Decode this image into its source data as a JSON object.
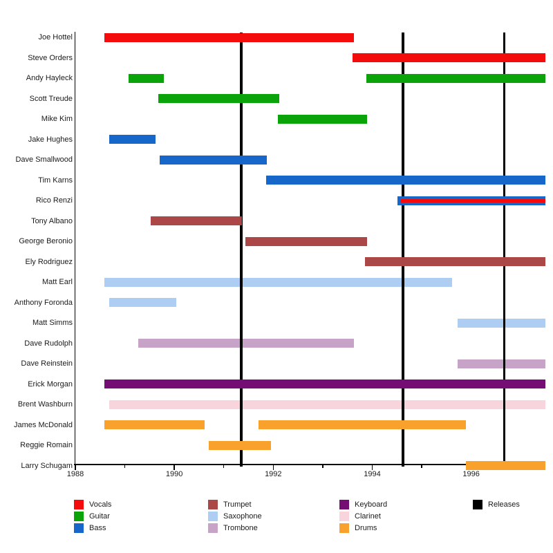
{
  "chart_data": {
    "type": "timeline",
    "title": "",
    "description": "Band membership timeline (gantt-style) with instrument color coding and release marker lines",
    "x_axis": {
      "min": 1988,
      "max": 1997.5,
      "labeled_ticks": [
        1988,
        1990,
        1992,
        1994,
        1996
      ],
      "minor_ticks": [
        1989,
        1991,
        1993,
        1995,
        1997
      ]
    },
    "releases": [
      1991.35,
      1994.62,
      1996.67
    ],
    "members": [
      {
        "name": "Joe Hottel",
        "bars": [
          {
            "instrument": "vocals",
            "start": 1988.58,
            "end": 1993.63
          }
        ]
      },
      {
        "name": "Steve Orders",
        "bars": [
          {
            "instrument": "vocals",
            "start": 1993.6,
            "end": 1997.5
          }
        ]
      },
      {
        "name": "Andy Hayleck",
        "bars": [
          {
            "instrument": "guitar",
            "start": 1989.08,
            "end": 1989.79
          },
          {
            "instrument": "guitar",
            "start": 1993.88,
            "end": 1997.5
          }
        ]
      },
      {
        "name": "Scott Treude",
        "bars": [
          {
            "instrument": "guitar",
            "start": 1989.68,
            "end": 1992.12
          }
        ]
      },
      {
        "name": "Mike Kim",
        "bars": [
          {
            "instrument": "guitar",
            "start": 1992.1,
            "end": 1993.9
          }
        ]
      },
      {
        "name": "Jake Hughes",
        "bars": [
          {
            "instrument": "bass",
            "start": 1988.68,
            "end": 1989.62
          }
        ]
      },
      {
        "name": "Dave Smallwood",
        "bars": [
          {
            "instrument": "bass",
            "start": 1989.7,
            "end": 1991.87
          }
        ]
      },
      {
        "name": "Tim Karns",
        "bars": [
          {
            "instrument": "bass",
            "start": 1991.85,
            "end": 1997.5
          }
        ]
      },
      {
        "name": "Rico Renzi",
        "bars": [
          {
            "instrument": "bass",
            "start": 1994.51,
            "end": 1997.5
          },
          {
            "instrument": "vocals",
            "start": 1994.58,
            "end": 1997.5,
            "overlay": true
          }
        ]
      },
      {
        "name": "Tony Albano",
        "bars": [
          {
            "instrument": "trumpet",
            "start": 1989.52,
            "end": 1991.37
          }
        ]
      },
      {
        "name": "George Beronio",
        "bars": [
          {
            "instrument": "trumpet",
            "start": 1991.44,
            "end": 1993.89
          }
        ]
      },
      {
        "name": "Ely Rodriguez",
        "bars": [
          {
            "instrument": "trumpet",
            "start": 1993.85,
            "end": 1997.5
          }
        ]
      },
      {
        "name": "Matt Earl",
        "bars": [
          {
            "instrument": "saxophone",
            "start": 1988.58,
            "end": 1995.62
          }
        ]
      },
      {
        "name": "Anthony Foronda",
        "bars": [
          {
            "instrument": "saxophone",
            "start": 1988.68,
            "end": 1990.04
          }
        ]
      },
      {
        "name": "Matt Simms",
        "bars": [
          {
            "instrument": "saxophone",
            "start": 1995.72,
            "end": 1997.5
          }
        ]
      },
      {
        "name": "Dave Rudolph",
        "bars": [
          {
            "instrument": "trombone",
            "start": 1989.27,
            "end": 1993.63
          }
        ]
      },
      {
        "name": "Dave Reinstein",
        "bars": [
          {
            "instrument": "trombone",
            "start": 1995.72,
            "end": 1997.5
          }
        ]
      },
      {
        "name": "Erick Morgan",
        "bars": [
          {
            "instrument": "keyboard",
            "start": 1988.58,
            "end": 1997.5
          }
        ]
      },
      {
        "name": "Brent Washburn",
        "bars": [
          {
            "instrument": "clarinet",
            "start": 1988.68,
            "end": 1997.5
          }
        ]
      },
      {
        "name": "James McDonald",
        "bars": [
          {
            "instrument": "drums",
            "start": 1988.58,
            "end": 1990.61
          },
          {
            "instrument": "drums",
            "start": 1991.7,
            "end": 1995.9
          }
        ]
      },
      {
        "name": "Reggie Romain",
        "bars": [
          {
            "instrument": "drums",
            "start": 1990.69,
            "end": 1991.95
          }
        ]
      },
      {
        "name": "Larry Schugam",
        "bars": [
          {
            "instrument": "drums",
            "start": 1995.9,
            "end": 1997.5
          }
        ]
      }
    ],
    "legend": {
      "columns": [
        [
          {
            "label": "Vocals",
            "key": "vocals"
          },
          {
            "label": "Guitar",
            "key": "guitar"
          },
          {
            "label": "Bass",
            "key": "bass"
          }
        ],
        [
          {
            "label": "Trumpet",
            "key": "trumpet"
          },
          {
            "label": "Saxophone",
            "key": "saxophone"
          },
          {
            "label": "Trombone",
            "key": "trombone"
          }
        ],
        [
          {
            "label": "Keyboard",
            "key": "keyboard"
          },
          {
            "label": "Clarinet",
            "key": "clarinet"
          },
          {
            "label": "Drums",
            "key": "drums"
          }
        ],
        [
          {
            "label": "Releases",
            "key": "releases"
          }
        ]
      ]
    },
    "colors": {
      "vocals": "#f40b0b",
      "guitar": "#0aa40a",
      "bass": "#1667c9",
      "trumpet": "#ac4747",
      "saxophone": "#aecdf3",
      "trombone": "#c7a4c7",
      "keyboard": "#740e74",
      "clarinet": "#f8d4dc",
      "drums": "#f8a12d",
      "releases": "#000000"
    },
    "light_instruments": [
      "saxophone",
      "trombone",
      "clarinet"
    ]
  }
}
